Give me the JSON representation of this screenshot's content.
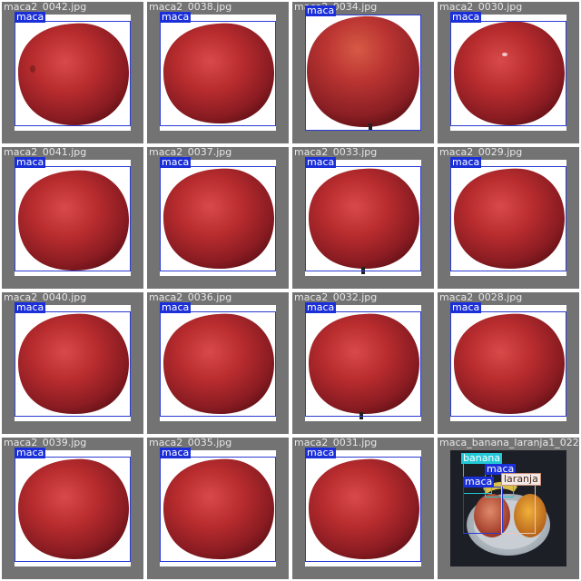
{
  "colors": {
    "tile_bg": "#737373",
    "maca_label_bg": "#1a2fd8",
    "banana_label_bg": "#23c8d6",
    "laranja_label_bg": "#f2e9e6",
    "box_blue": "#2a3bd0"
  },
  "tiles": [
    {
      "filename": "maca2_0042.jpg",
      "label": "maca"
    },
    {
      "filename": "maca2_0038.jpg",
      "label": "maca"
    },
    {
      "filename": "maca2_0034.jpg",
      "label": "maca"
    },
    {
      "filename": "maca2_0030.jpg",
      "label": "maca"
    },
    {
      "filename": "maca2_0041.jpg",
      "label": "maca"
    },
    {
      "filename": "maca2_0037.jpg",
      "label": "maca"
    },
    {
      "filename": "maca2_0033.jpg",
      "label": "maca"
    },
    {
      "filename": "maca2_0029.jpg",
      "label": "maca"
    },
    {
      "filename": "maca2_0040.jpg",
      "label": "maca"
    },
    {
      "filename": "maca2_0036.jpg",
      "label": "maca"
    },
    {
      "filename": "maca2_0032.jpg",
      "label": "maca"
    },
    {
      "filename": "maca2_0028.jpg",
      "label": "maca"
    },
    {
      "filename": "maca2_0039.jpg",
      "label": "maca"
    },
    {
      "filename": "maca2_0035.jpg",
      "label": "maca"
    },
    {
      "filename": "maca2_0031.jpg",
      "label": "maca"
    },
    {
      "filename": "maca_banana_laranja1_022.jpg",
      "labels": [
        "banana",
        "maca",
        "maca",
        "laranja"
      ]
    }
  ]
}
